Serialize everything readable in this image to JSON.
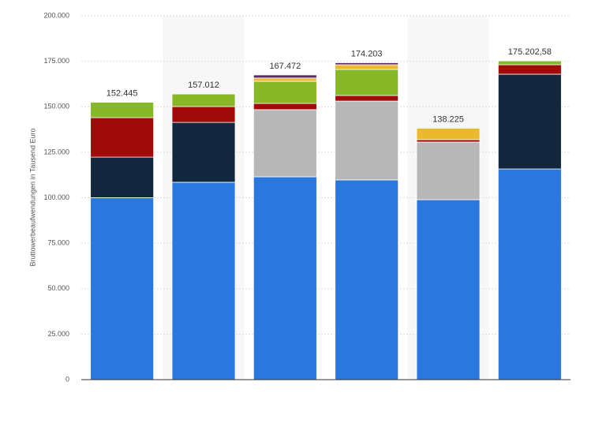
{
  "chart_data": {
    "type": "stacked-bar",
    "y_label": "Bruttowerbeaufwendungen in Tausend Euro",
    "categories": [
      null,
      null,
      null,
      null,
      null,
      null
    ],
    "series": [
      {
        "color": "#2a77dd",
        "values": [
          100000,
          108500,
          111500,
          109800,
          98900,
          115800
        ]
      },
      {
        "color": "#12263d",
        "values": [
          22300,
          32900,
          0,
          0,
          0,
          52100
        ]
      },
      {
        "color": "#b7b7b7",
        "values": [
          0,
          0,
          36900,
          43300,
          31700,
          0
        ]
      },
      {
        "color": "#a20a0a",
        "values": [
          21700,
          8700,
          3400,
          3100,
          1300,
          5200
        ]
      },
      {
        "color": "#86b827",
        "values": [
          8445,
          6912,
          12200,
          14300,
          0,
          2102.58
        ]
      },
      {
        "color": "#ecb82d",
        "values": [
          0,
          0,
          1800,
          2600,
          6325,
          0
        ]
      },
      {
        "color": "#5a2a6e",
        "values": [
          0,
          0,
          1672,
          1103,
          0,
          0
        ]
      }
    ],
    "totals": {
      "values": [
        152445,
        157012,
        167472,
        174203,
        138225,
        175202.58
      ],
      "value_labels": [
        "152.445",
        "157.012",
        "167.472",
        "174.203",
        "138.225",
        "175.202,58"
      ]
    },
    "ylim": [
      0,
      200000
    ],
    "yticks": [
      0,
      {
        "value": 25000,
        "label": "25.000"
      },
      {
        "value": 50000,
        "label": "50.000"
      },
      {
        "value": 75000,
        "label": "75.000"
      },
      {
        "value": 100000,
        "label": "100.000"
      },
      {
        "value": 125000,
        "label": "125.000"
      },
      {
        "value": 150000,
        "label": "150.000"
      },
      {
        "value": 175000,
        "label": "175.000"
      },
      {
        "value": 200000,
        "label": "200.000"
      }
    ],
    "grid": true
  }
}
